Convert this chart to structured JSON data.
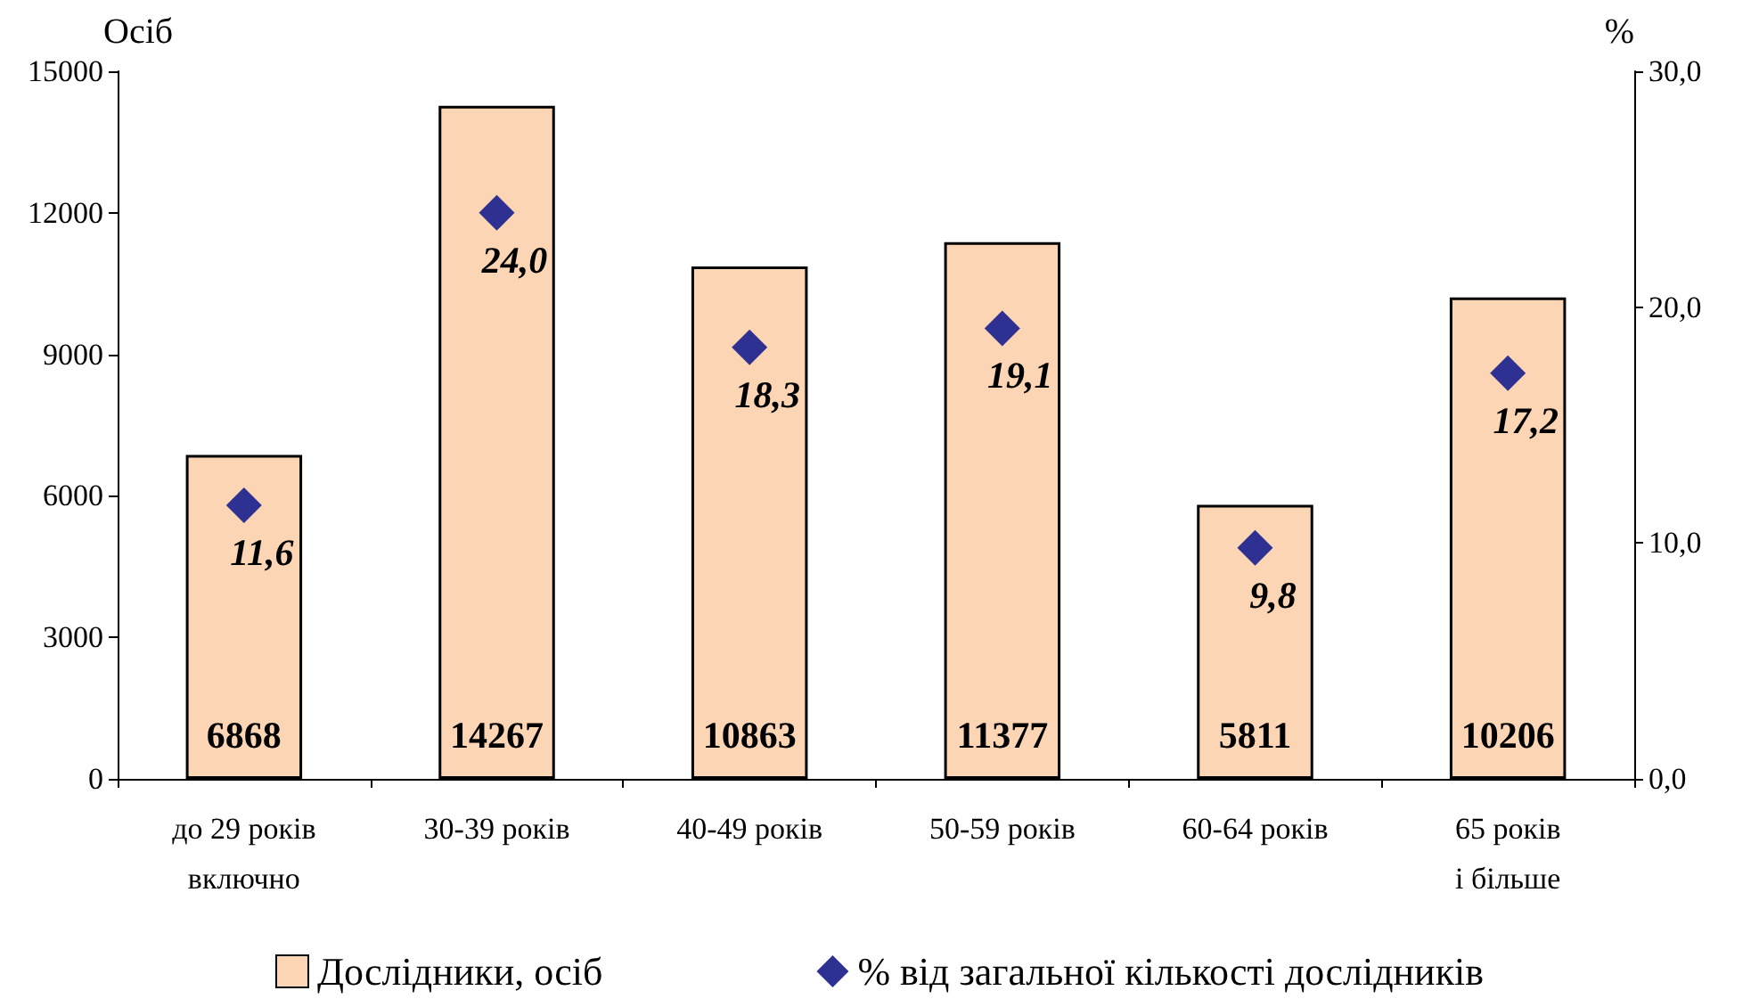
{
  "chart_data": {
    "type": "bar",
    "categories": [
      "до 29 років\nвключно",
      "30-39 років",
      "40-49 років",
      "50-59 років",
      "60-64 років",
      "65 років\nі більше"
    ],
    "ylabel": "Осіб",
    "y2label": "%",
    "ylim": [
      0,
      15000
    ],
    "yticks": [
      0,
      3000,
      6000,
      9000,
      12000,
      15000
    ],
    "y2lim": [
      0,
      30
    ],
    "y2ticks": [
      {
        "value": 0,
        "label": "0,0"
      },
      {
        "value": 10,
        "label": "10,0"
      },
      {
        "value": 20,
        "label": "20,0"
      },
      {
        "value": 30,
        "label": "30,0"
      }
    ],
    "series": [
      {
        "name": "Дослідники, осіб",
        "color": "#fcd5b4",
        "values": [
          6868,
          14267,
          10863,
          11377,
          5811,
          10206
        ]
      },
      {
        "type": "scatter",
        "name": "% від загальної кількості дослідників",
        "color": "#2e3192",
        "axis": "y2",
        "marker": "diamond",
        "values": [
          11.6,
          24.0,
          18.3,
          19.1,
          9.8,
          17.2
        ],
        "value_labels": [
          "11,6",
          "24,0",
          "18,3",
          "19,1",
          "9,8",
          "17,2"
        ]
      }
    ],
    "data_labels": true,
    "legend": "bottom"
  }
}
